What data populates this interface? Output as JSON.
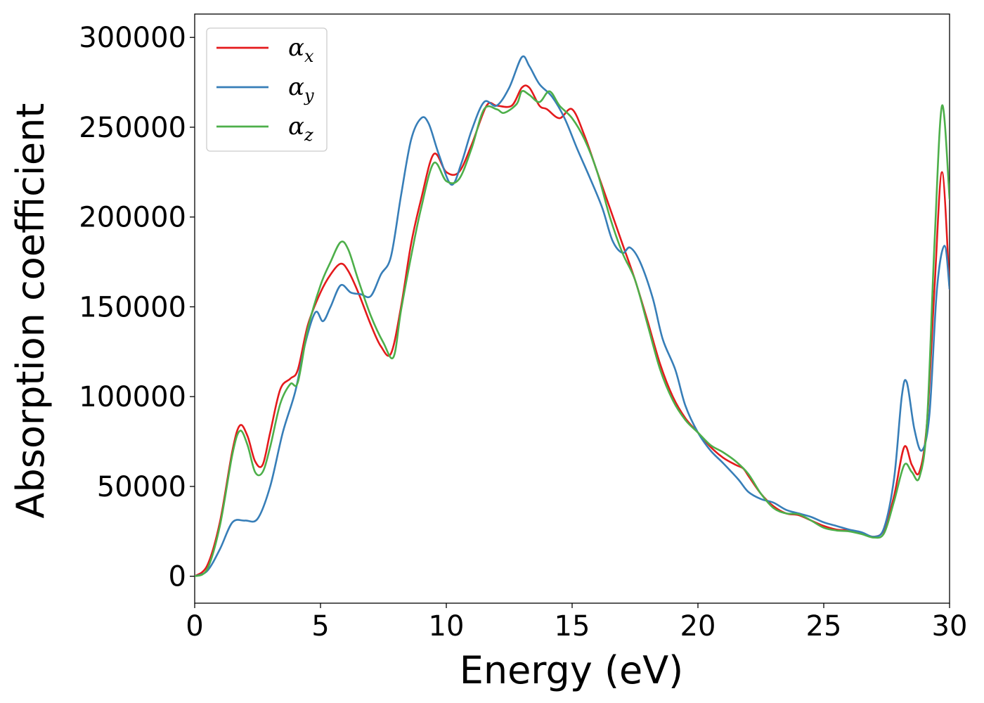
{
  "chart_data": {
    "type": "line",
    "title": "",
    "xlabel": "Energy (eV)",
    "ylabel": "Absorption coefficient",
    "xlim": [
      0,
      30
    ],
    "ylim": [
      -15000,
      313000
    ],
    "xticks": [
      0,
      5,
      10,
      15,
      20,
      25,
      30
    ],
    "yticks": [
      0,
      50000,
      100000,
      150000,
      200000,
      250000,
      300000
    ],
    "grid": false,
    "legend_position": "top-left",
    "series": [
      {
        "name": "α",
        "subscript": "x",
        "color": "#e41a1c",
        "points": [
          [
            0,
            0
          ],
          [
            0.5,
            6000
          ],
          [
            1,
            30000
          ],
          [
            1.5,
            70000
          ],
          [
            1.8,
            84000
          ],
          [
            2.1,
            78000
          ],
          [
            2.4,
            64000
          ],
          [
            2.7,
            62000
          ],
          [
            3,
            80000
          ],
          [
            3.4,
            104000
          ],
          [
            3.8,
            110000
          ],
          [
            4.1,
            115000
          ],
          [
            4.5,
            140000
          ],
          [
            5,
            158000
          ],
          [
            5.4,
            168000
          ],
          [
            5.8,
            174000
          ],
          [
            6.1,
            170000
          ],
          [
            6.5,
            158000
          ],
          [
            7,
            140000
          ],
          [
            7.4,
            128000
          ],
          [
            7.8,
            124000
          ],
          [
            8.2,
            150000
          ],
          [
            8.6,
            185000
          ],
          [
            9,
            210000
          ],
          [
            9.5,
            235000
          ],
          [
            10,
            225000
          ],
          [
            10.5,
            225000
          ],
          [
            11,
            240000
          ],
          [
            11.6,
            262000
          ],
          [
            12,
            262000
          ],
          [
            12.6,
            262000
          ],
          [
            13,
            272000
          ],
          [
            13.3,
            272000
          ],
          [
            13.7,
            262000
          ],
          [
            14,
            260000
          ],
          [
            14.5,
            255000
          ],
          [
            15,
            260000
          ],
          [
            15.5,
            245000
          ],
          [
            16,
            225000
          ],
          [
            16.5,
            205000
          ],
          [
            17,
            185000
          ],
          [
            17.5,
            165000
          ],
          [
            18,
            142000
          ],
          [
            18.5,
            118000
          ],
          [
            19,
            100000
          ],
          [
            19.5,
            88000
          ],
          [
            20,
            80000
          ],
          [
            20.5,
            72000
          ],
          [
            21,
            66000
          ],
          [
            21.5,
            62000
          ],
          [
            21.8,
            60000
          ],
          [
            22,
            56000
          ],
          [
            22.5,
            46000
          ],
          [
            23,
            39000
          ],
          [
            23.5,
            35000
          ],
          [
            24,
            34000
          ],
          [
            24.5,
            31000
          ],
          [
            25,
            28000
          ],
          [
            25.5,
            26000
          ],
          [
            26,
            25500
          ],
          [
            26.5,
            24000
          ],
          [
            27,
            22000
          ],
          [
            27.4,
            26000
          ],
          [
            27.8,
            45000
          ],
          [
            28.2,
            72000
          ],
          [
            28.5,
            62000
          ],
          [
            28.8,
            58000
          ],
          [
            29.1,
            85000
          ],
          [
            29.4,
            160000
          ],
          [
            29.7,
            225000
          ],
          [
            30,
            160000
          ]
        ]
      },
      {
        "name": "α",
        "subscript": "y",
        "color": "#377eb8",
        "points": [
          [
            0,
            0
          ],
          [
            0.5,
            3000
          ],
          [
            1,
            15000
          ],
          [
            1.5,
            30000
          ],
          [
            2,
            31000
          ],
          [
            2.5,
            32000
          ],
          [
            3,
            50000
          ],
          [
            3.5,
            80000
          ],
          [
            4,
            103000
          ],
          [
            4.4,
            130000
          ],
          [
            4.8,
            147000
          ],
          [
            5.1,
            142000
          ],
          [
            5.4,
            150000
          ],
          [
            5.8,
            162000
          ],
          [
            6.2,
            158000
          ],
          [
            6.6,
            157000
          ],
          [
            7,
            156000
          ],
          [
            7.4,
            168000
          ],
          [
            7.8,
            178000
          ],
          [
            8.2,
            212000
          ],
          [
            8.6,
            243000
          ],
          [
            9,
            255000
          ],
          [
            9.3,
            252000
          ],
          [
            9.7,
            235000
          ],
          [
            10.2,
            218000
          ],
          [
            10.6,
            230000
          ],
          [
            11,
            248000
          ],
          [
            11.5,
            264000
          ],
          [
            12,
            262000
          ],
          [
            12.5,
            272000
          ],
          [
            13,
            289000
          ],
          [
            13.3,
            284000
          ],
          [
            13.7,
            274000
          ],
          [
            14.2,
            267000
          ],
          [
            14.7,
            255000
          ],
          [
            15.2,
            238000
          ],
          [
            15.7,
            222000
          ],
          [
            16.2,
            205000
          ],
          [
            16.6,
            187000
          ],
          [
            17,
            180000
          ],
          [
            17.3,
            183000
          ],
          [
            17.7,
            175000
          ],
          [
            18.2,
            155000
          ],
          [
            18.6,
            132000
          ],
          [
            19.1,
            115000
          ],
          [
            19.5,
            95000
          ],
          [
            20,
            80000
          ],
          [
            20.5,
            70000
          ],
          [
            21,
            63000
          ],
          [
            21.6,
            54000
          ],
          [
            22,
            47000
          ],
          [
            22.5,
            43000
          ],
          [
            23,
            41000
          ],
          [
            23.5,
            37000
          ],
          [
            24,
            35000
          ],
          [
            24.5,
            33000
          ],
          [
            25,
            30000
          ],
          [
            25.5,
            28000
          ],
          [
            26,
            26000
          ],
          [
            26.5,
            24500
          ],
          [
            27,
            22000
          ],
          [
            27.4,
            27000
          ],
          [
            27.8,
            55000
          ],
          [
            28.1,
            100000
          ],
          [
            28.3,
            108000
          ],
          [
            28.6,
            82000
          ],
          [
            28.9,
            70000
          ],
          [
            29.2,
            90000
          ],
          [
            29.5,
            160000
          ],
          [
            29.8,
            184000
          ],
          [
            30,
            160000
          ]
        ]
      },
      {
        "name": "α",
        "subscript": "z",
        "color": "#4daf4a",
        "points": [
          [
            0,
            0
          ],
          [
            0.5,
            4000
          ],
          [
            1,
            28000
          ],
          [
            1.5,
            68000
          ],
          [
            1.8,
            81000
          ],
          [
            2.1,
            73000
          ],
          [
            2.4,
            58000
          ],
          [
            2.7,
            58000
          ],
          [
            3,
            72000
          ],
          [
            3.4,
            96000
          ],
          [
            3.8,
            107000
          ],
          [
            4.1,
            108000
          ],
          [
            4.5,
            138000
          ],
          [
            5,
            162000
          ],
          [
            5.4,
            175000
          ],
          [
            5.8,
            186000
          ],
          [
            6.1,
            182000
          ],
          [
            6.5,
            165000
          ],
          [
            7,
            145000
          ],
          [
            7.5,
            130000
          ],
          [
            7.9,
            122000
          ],
          [
            8.2,
            148000
          ],
          [
            8.6,
            178000
          ],
          [
            9,
            205000
          ],
          [
            9.5,
            230000
          ],
          [
            10,
            220000
          ],
          [
            10.5,
            221000
          ],
          [
            11,
            238000
          ],
          [
            11.5,
            260000
          ],
          [
            12,
            260000
          ],
          [
            12.3,
            258000
          ],
          [
            12.8,
            263000
          ],
          [
            13,
            270000
          ],
          [
            13.3,
            268000
          ],
          [
            13.7,
            264000
          ],
          [
            14.1,
            270000
          ],
          [
            14.5,
            262000
          ],
          [
            15,
            255000
          ],
          [
            15.5,
            243000
          ],
          [
            16,
            225000
          ],
          [
            16.5,
            200000
          ],
          [
            17,
            180000
          ],
          [
            17.5,
            165000
          ],
          [
            18,
            140000
          ],
          [
            18.5,
            115000
          ],
          [
            19,
            98000
          ],
          [
            19.5,
            87000
          ],
          [
            20,
            80000
          ],
          [
            20.5,
            73000
          ],
          [
            21,
            69000
          ],
          [
            21.5,
            64000
          ],
          [
            22,
            57000
          ],
          [
            22.5,
            46000
          ],
          [
            23,
            38000
          ],
          [
            23.5,
            35000
          ],
          [
            24,
            34500
          ],
          [
            24.5,
            31000
          ],
          [
            25,
            27000
          ],
          [
            25.5,
            25500
          ],
          [
            26,
            25000
          ],
          [
            26.5,
            23500
          ],
          [
            27,
            21500
          ],
          [
            27.4,
            24000
          ],
          [
            27.8,
            42000
          ],
          [
            28.2,
            62000
          ],
          [
            28.5,
            58000
          ],
          [
            28.8,
            55000
          ],
          [
            29.1,
            85000
          ],
          [
            29.4,
            185000
          ],
          [
            29.7,
            262000
          ],
          [
            30,
            210000
          ]
        ]
      }
    ]
  }
}
